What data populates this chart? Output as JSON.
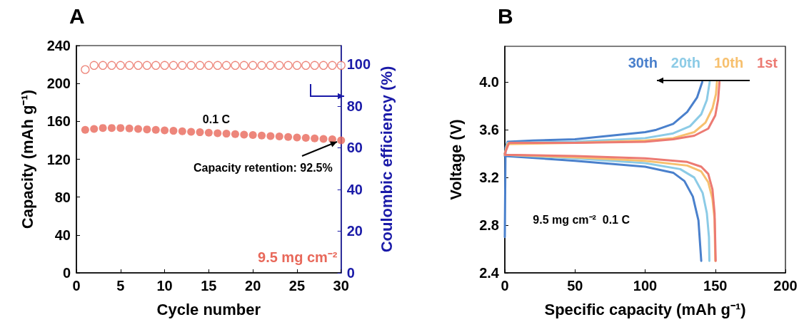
{
  "chart_data": [
    {
      "type": "scatter",
      "title": "A",
      "xlabel": "Cycle number",
      "ylabel": "Capacity (mAh g⁻¹)",
      "y2label": "Coulombic efficiency (%)",
      "x": [
        1,
        2,
        3,
        4,
        5,
        6,
        7,
        8,
        9,
        10,
        11,
        12,
        13,
        14,
        15,
        16,
        17,
        18,
        19,
        20,
        21,
        22,
        23,
        24,
        25,
        26,
        27,
        28,
        29,
        30
      ],
      "series": [
        {
          "color": "#e8685a",
          "values": [
            151,
            152,
            153,
            153,
            153,
            152.5,
            152,
            151.5,
            151,
            150.5,
            150,
            149.5,
            149,
            148.5,
            148,
            147.5,
            147,
            146.5,
            146,
            145.5,
            145,
            144.5,
            144,
            143.5,
            143,
            142.5,
            142,
            141.5,
            141,
            140
          ]
        },
        {
          "color": "#e8685a",
          "axis": "y2",
          "values": [
            97.5,
            99.5,
            99.5,
            99.5,
            99.5,
            99.5,
            99.5,
            99.5,
            99.5,
            99.5,
            99.5,
            99.5,
            99.5,
            99.5,
            99.5,
            99.5,
            99.5,
            99.5,
            99.5,
            99.5,
            99.5,
            99.5,
            99.5,
            99.5,
            99.5,
            99.5,
            99.5,
            99.5,
            99.5,
            99.5
          ]
        }
      ],
      "xlim": [
        0,
        30
      ],
      "xticks": [
        0,
        5,
        10,
        15,
        20,
        25,
        30
      ],
      "ylim": [
        0,
        240
      ],
      "yticks": [
        0,
        40,
        80,
        120,
        160,
        200,
        240
      ],
      "y2lim": [
        0,
        109
      ],
      "y2ticks": [
        0,
        20,
        40,
        60,
        80,
        100
      ],
      "marker": "circle",
      "legend": false,
      "grid": false,
      "annotations": [
        "0.1 C",
        {
          "text": "Capacity retention: 92.5%",
          "x": 30,
          "y": 140
        },
        "9.5 mg cm⁻²"
      ]
    },
    {
      "type": "line",
      "title": "B",
      "xlabel": "Specific capacity (mAh g⁻¹)",
      "ylabel": "Voltage (V)",
      "series": [
        {
          "name": "30th",
          "color": "#4a80cc",
          "x": [
            0,
            0.5,
            2,
            20,
            50,
            100,
            108,
            120,
            130,
            137,
            140.7,
            null,
            0,
            50,
            100,
            120,
            128,
            134,
            138,
            140
          ],
          "values": [
            2.7,
            3.45,
            3.5,
            3.51,
            3.52,
            3.58,
            3.6,
            3.65,
            3.75,
            3.87,
            4.0,
            null,
            3.38,
            3.34,
            3.29,
            3.24,
            3.17,
            3.04,
            2.84,
            2.5
          ]
        },
        {
          "name": "20th",
          "color": "#8ccbe6",
          "x": [
            0,
            2,
            50,
            100,
            120,
            132,
            140,
            144,
            146,
            null,
            0,
            50,
            100,
            125,
            135,
            141,
            144,
            145.5,
            145.8
          ],
          "values": [
            3.4,
            3.49,
            3.5,
            3.53,
            3.57,
            3.63,
            3.73,
            3.85,
            4.0,
            null,
            3.39,
            3.36,
            3.32,
            3.27,
            3.2,
            3.07,
            2.9,
            2.7,
            2.5
          ]
        },
        {
          "name": "10th",
          "color": "#f7c06e",
          "x": [
            0,
            2,
            50,
            100,
            120,
            135,
            143,
            148,
            150.5,
            151.2,
            null,
            0,
            50,
            100,
            130,
            140,
            145,
            148,
            149.5,
            150
          ],
          "values": [
            3.4,
            3.48,
            3.49,
            3.51,
            3.53,
            3.58,
            3.66,
            3.78,
            3.9,
            4.0,
            null,
            3.39,
            3.37,
            3.34,
            3.3,
            3.25,
            3.16,
            3.02,
            2.85,
            2.5
          ]
        },
        {
          "name": "1st",
          "color": "#ec7a72",
          "x": [
            0,
            3,
            50,
            100,
            120,
            135,
            145,
            150,
            152,
            153,
            null,
            0,
            50,
            100,
            130,
            140,
            145,
            148,
            149.5,
            150.3
          ],
          "values": [
            3.4,
            3.49,
            3.49,
            3.5,
            3.52,
            3.55,
            3.61,
            3.72,
            3.85,
            4.0,
            null,
            3.39,
            3.38,
            3.36,
            3.33,
            3.29,
            3.23,
            3.1,
            2.9,
            2.5
          ]
        }
      ],
      "xlim": [
        0,
        200
      ],
      "xticks": [
        0,
        50,
        100,
        150,
        200
      ],
      "ylim": [
        2.4,
        4.3
      ],
      "yticks": [
        2.4,
        2.8,
        3.2,
        3.6,
        {
          "value": 4,
          "label": "4.0"
        }
      ],
      "marker": "none",
      "line_style": "solid",
      "legend": "top right",
      "grid": false,
      "annotations": [
        "9.5 mg cm⁻²  0.1 C"
      ]
    }
  ]
}
